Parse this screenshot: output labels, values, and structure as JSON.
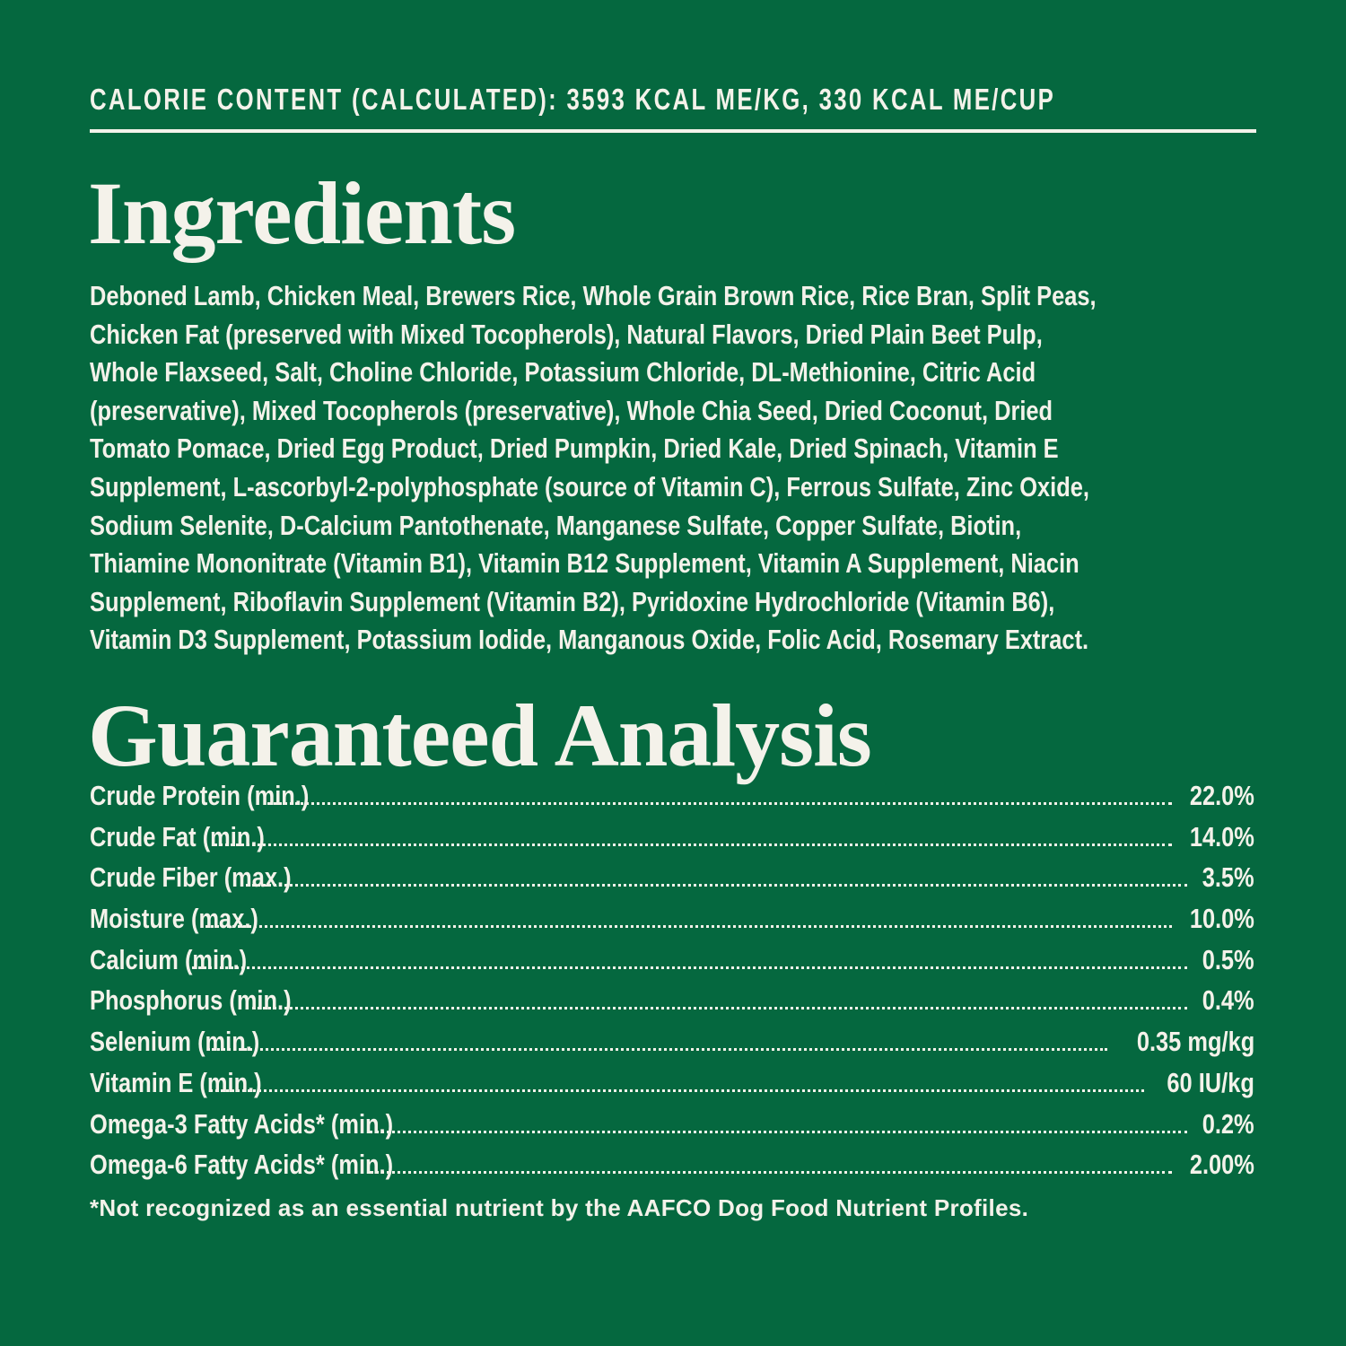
{
  "calorie_content": "CALORIE CONTENT (CALCULATED): 3593 KCAL ME/KG, 330 KCAL ME/CUP",
  "colors": {
    "background": "#05683f",
    "text": "#f4f2ea"
  },
  "ingredients": {
    "title": "Ingredients",
    "lines": [
      "Deboned Lamb, Chicken Meal, Brewers Rice, Whole Grain Brown Rice, Rice Bran, Split Peas,",
      "Chicken Fat (preserved with Mixed Tocopherols), Natural Flavors, Dried Plain Beet Pulp,",
      "Whole Flaxseed, Salt, Choline Chloride, Potassium Chloride, DL-Methionine, Citric Acid",
      "(preservative), Mixed Tocopherols (preservative), Whole Chia Seed, Dried Coconut, Dried",
      "Tomato Pomace, Dried Egg Product, Dried Pumpkin, Dried Kale, Dried Spinach, Vitamin E",
      "Supplement, L-ascorbyl-2-polyphosphate (source of Vitamin C), Ferrous Sulfate, Zinc Oxide,",
      "Sodium Selenite, D-Calcium Pantothenate, Manganese Sulfate, Copper Sulfate, Biotin,",
      "Thiamine Mononitrate (Vitamin B1), Vitamin B12 Supplement, Vitamin A Supplement, Niacin",
      "Supplement, Riboflavin Supplement (Vitamin B2), Pyridoxine Hydrochloride (Vitamin B6),",
      "Vitamin D3 Supplement, Potassium Iodide, Manganous Oxide, Folic Acid, Rosemary Extract."
    ]
  },
  "analysis": {
    "title": "Guaranteed Analysis",
    "rows": [
      {
        "label": "Crude Protein (min.)",
        "value": "22.0%"
      },
      {
        "label": "Crude Fat (min.)",
        "value": "14.0%"
      },
      {
        "label": "Crude Fiber (max.)",
        "value": "3.5%"
      },
      {
        "label": "Moisture (max.)",
        "value": "10.0%"
      },
      {
        "label": "Calcium (min.)",
        "value": "0.5%"
      },
      {
        "label": "Phosphorus (min.)",
        "value": "0.4%"
      },
      {
        "label": "Selenium (min.)",
        "value": "0.35 mg/kg"
      },
      {
        "label": "Vitamin E (min.)",
        "value": "60 IU/kg"
      },
      {
        "label": "Omega-3 Fatty Acids* (min.)",
        "value": "0.2%"
      },
      {
        "label": "Omega-6 Fatty Acids* (min.)",
        "value": "2.00%"
      }
    ],
    "footnote": "*Not recognized as an essential nutrient by the AAFCO Dog Food Nutrient Profiles."
  }
}
